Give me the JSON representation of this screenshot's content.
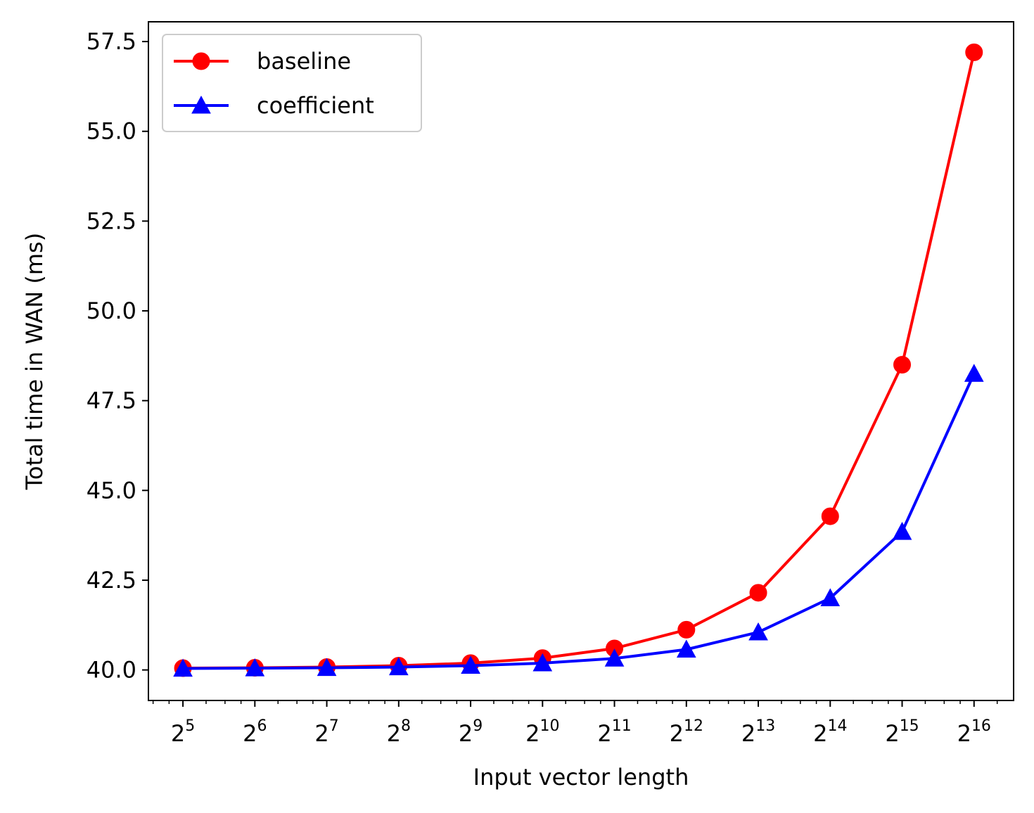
{
  "chart_data": {
    "type": "line",
    "title": "",
    "xlabel": "Input vector length",
    "ylabel": "Total time in WAN (ms)",
    "x_scale": "log2",
    "x": [
      32,
      64,
      128,
      256,
      512,
      1024,
      2048,
      4096,
      8192,
      16384,
      32768,
      65536
    ],
    "x_tick_labels": [
      {
        "base": "2",
        "exp": "5"
      },
      {
        "base": "2",
        "exp": "6"
      },
      {
        "base": "2",
        "exp": "7"
      },
      {
        "base": "2",
        "exp": "8"
      },
      {
        "base": "2",
        "exp": "9"
      },
      {
        "base": "2",
        "exp": "10"
      },
      {
        "base": "2",
        "exp": "11"
      },
      {
        "base": "2",
        "exp": "12"
      },
      {
        "base": "2",
        "exp": "13"
      },
      {
        "base": "2",
        "exp": "14"
      },
      {
        "base": "2",
        "exp": "15"
      },
      {
        "base": "2",
        "exp": "16"
      }
    ],
    "y_ticks": [
      40.0,
      42.5,
      45.0,
      47.5,
      50.0,
      52.5,
      55.0,
      57.5
    ],
    "y_tick_labels": [
      "40.0",
      "42.5",
      "45.0",
      "47.5",
      "50.0",
      "52.5",
      "55.0",
      "57.5"
    ],
    "ylim": [
      39.15,
      58.05
    ],
    "xlim_log2": [
      4.52,
      16.55
    ],
    "grid": false,
    "legend_position": "top-left",
    "series": [
      {
        "name": "baseline",
        "color": "#ff0000",
        "marker": "circle",
        "values": [
          40.05,
          40.06,
          40.08,
          40.12,
          40.19,
          40.33,
          40.6,
          41.12,
          42.15,
          44.28,
          48.5,
          57.2
        ]
      },
      {
        "name": "coefficient",
        "color": "#0000ff",
        "marker": "triangle",
        "values": [
          40.04,
          40.05,
          40.06,
          40.08,
          40.12,
          40.19,
          40.32,
          40.57,
          41.05,
          42.0,
          43.85,
          48.25
        ]
      }
    ]
  }
}
